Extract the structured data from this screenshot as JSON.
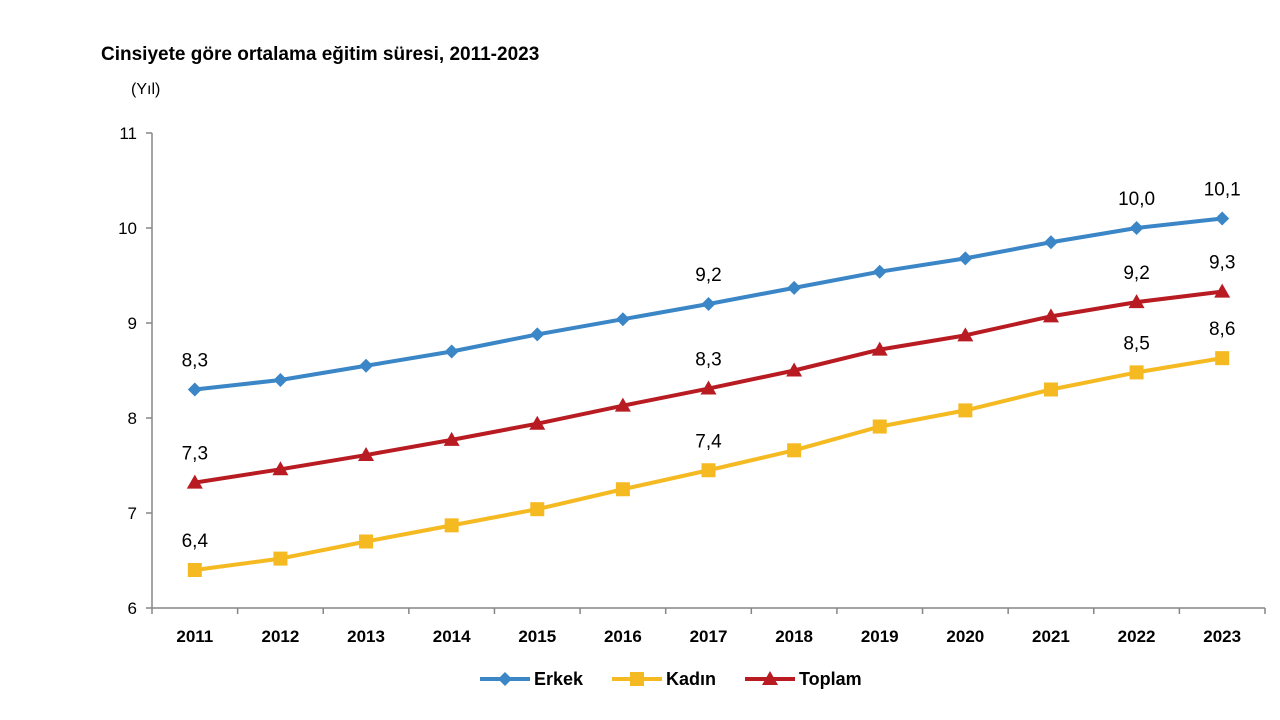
{
  "chart_data": {
    "type": "line",
    "title": "Cinsiyete göre ortalama eğitim süresi, 2011-2023",
    "ylabel": "(Yıl)",
    "xlabel": "",
    "x": [
      "2011",
      "2012",
      "2013",
      "2014",
      "2015",
      "2016",
      "2017",
      "2018",
      "2019",
      "2020",
      "2021",
      "2022",
      "2023"
    ],
    "ylim": [
      6,
      11
    ],
    "yticks": [
      6,
      7,
      8,
      9,
      10,
      11
    ],
    "grid": false,
    "legend_position": "bottom",
    "series": [
      {
        "name": "Erkek",
        "color": "#3b86c6",
        "marker": "diamond",
        "values": [
          8.3,
          8.4,
          8.55,
          8.7,
          8.88,
          9.04,
          9.2,
          9.37,
          9.54,
          9.68,
          9.85,
          10.0,
          10.1
        ],
        "labels": {
          "0": "8,3",
          "6": "9,2",
          "11": "10,0",
          "12": "10,1"
        }
      },
      {
        "name": "Kadın",
        "color": "#f5b922",
        "marker": "square",
        "values": [
          6.4,
          6.52,
          6.7,
          6.87,
          7.04,
          7.25,
          7.45,
          7.66,
          7.91,
          8.08,
          8.3,
          8.48,
          8.63
        ],
        "labels": {
          "0": "6,4",
          "6": "7,4",
          "11": "8,5",
          "12": "8,6"
        }
      },
      {
        "name": "Toplam",
        "color": "#b81c22",
        "marker": "triangle",
        "values": [
          7.32,
          7.46,
          7.61,
          7.77,
          7.94,
          8.13,
          8.31,
          8.5,
          8.72,
          8.87,
          9.07,
          9.22,
          9.33
        ],
        "labels": {
          "0": "7,3",
          "6": "8,3",
          "11": "9,2",
          "12": "9,3"
        }
      }
    ]
  }
}
